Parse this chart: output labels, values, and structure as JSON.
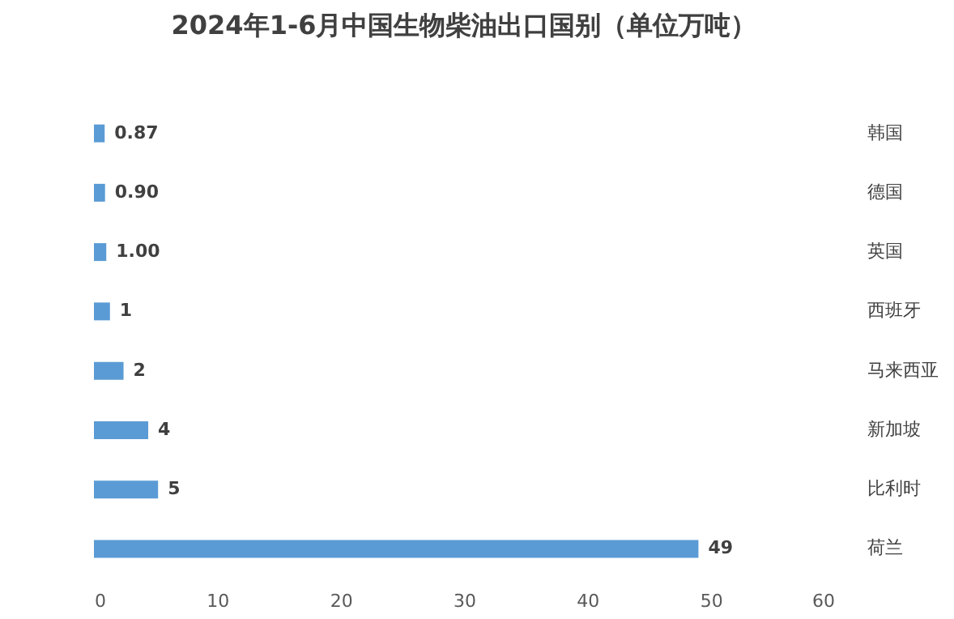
{
  "chart_data": {
    "type": "bar",
    "orientation": "horizontal",
    "title": "2024年1-6月中国生物柴油出口国别（单位万吨）",
    "categories": [
      "韩国",
      "德国",
      "英国",
      "西班牙",
      "马来西亚",
      "新加坡",
      "比利时",
      "荷兰"
    ],
    "values": [
      0.87,
      0.9,
      1.0,
      1.3,
      2.4,
      4.4,
      5.2,
      49
    ],
    "value_labels": [
      "0.87",
      "0.90",
      "1.00",
      "1",
      "2",
      "4",
      "5",
      "49"
    ],
    "color": "#5b9bd5",
    "xlim": [
      0,
      60
    ],
    "xticks": [
      0,
      10,
      20,
      30,
      40,
      50,
      60
    ],
    "grid": false
  }
}
